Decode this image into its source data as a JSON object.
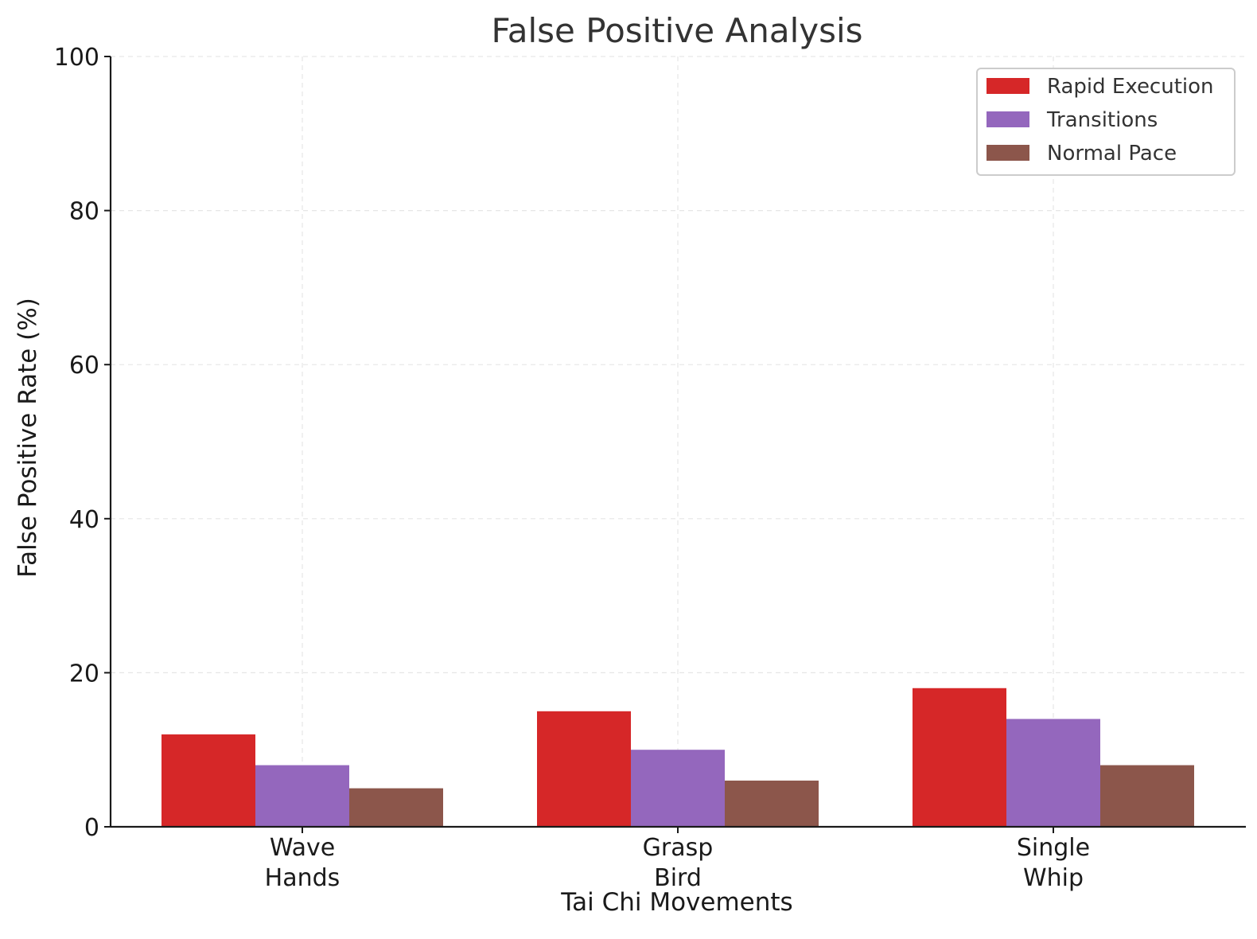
{
  "chart_data": {
    "type": "bar",
    "title": "False Positive Analysis",
    "xlabel": "Tai Chi Movements",
    "ylabel": "False Positive Rate (%)",
    "categories": [
      [
        "Wave",
        "Hands"
      ],
      [
        "Grasp",
        "Bird"
      ],
      [
        "Single",
        "Whip"
      ]
    ],
    "series": [
      {
        "name": "Rapid Execution",
        "color": "#d62728",
        "values": [
          12,
          15,
          18
        ]
      },
      {
        "name": "Transitions",
        "color": "#9467bd",
        "values": [
          8,
          10,
          14
        ]
      },
      {
        "name": "Normal Pace",
        "color": "#8c564b",
        "values": [
          5,
          6,
          8
        ]
      }
    ],
    "ylim": [
      0,
      100
    ],
    "yticks": [
      0,
      20,
      40,
      60,
      80,
      100
    ],
    "grid": true,
    "legend_position": "top-right"
  }
}
